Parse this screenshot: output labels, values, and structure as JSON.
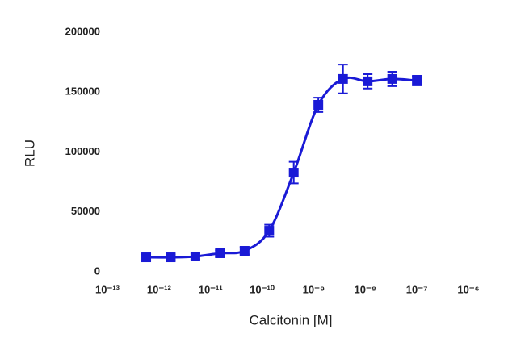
{
  "chart_data": {
    "type": "scatter",
    "x_label": "Calcitonin [M]",
    "y_label": "RLU",
    "xscale": "log",
    "xlim": [
      1e-13,
      1e-06
    ],
    "xticks": [
      {
        "value": 1e-13,
        "label": "10⁻¹³"
      },
      {
        "value": 1e-12,
        "label": "10⁻¹²"
      },
      {
        "value": 1e-11,
        "label": "10⁻¹¹"
      },
      {
        "value": 1e-10,
        "label": "10⁻¹⁰"
      },
      {
        "value": 1e-09,
        "label": "10⁻⁹"
      },
      {
        "value": 1e-08,
        "label": "10⁻⁸"
      },
      {
        "value": 1e-07,
        "label": "10⁻⁷"
      },
      {
        "value": 1e-06,
        "label": "10⁻⁶"
      }
    ],
    "ylim": [
      0,
      200000
    ],
    "yticks": [
      0,
      50000,
      100000,
      150000,
      200000
    ],
    "color": "#1a1ad6",
    "x": [
      5.65e-13,
      1.69e-12,
      5.08e-12,
      1.52e-11,
      4.57e-11,
      1.37e-10,
      4.1e-10,
      1.23e-09,
      3.7e-09,
      1.11e-08,
      3.33e-08,
      1e-07
    ],
    "values": [
      12100,
      12100,
      12800,
      15500,
      17500,
      34300,
      82800,
      139400,
      161000,
      159000,
      161000,
      159600
    ],
    "errors": [
      2500,
      2500,
      2500,
      2500,
      3000,
      5000,
      9000,
      6000,
      12000,
      6000,
      6000,
      4000
    ]
  }
}
